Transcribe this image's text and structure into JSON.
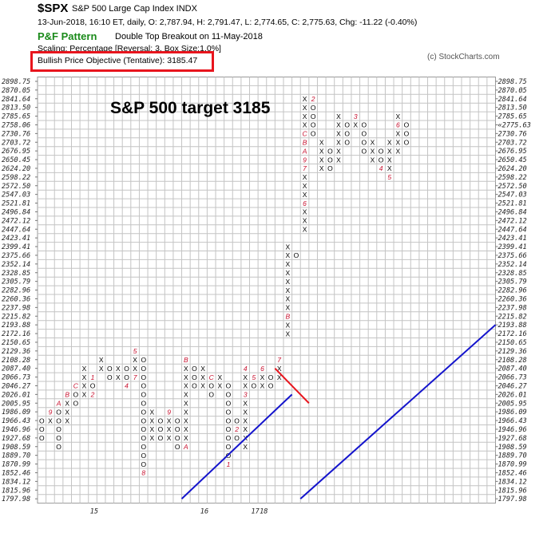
{
  "header": {
    "symbol": "$SPX",
    "name": "S&P 500 Large Cap Index  INDX",
    "ohlc": "13-Jun-2018, 16:10 ET, daily, O: 2,787.94, H: 2,791.47, L: 2,774.65, C: 2,775.63, Chg: -11.22 (-0.40%)",
    "pattern_label": "P&F Pattern",
    "pattern": "Double Top Breakout on 11-May-2018",
    "scaling": "Scaling: Percentage [Reversal: 3, Box Size:1.0%]",
    "copyright": "(c) StockCharts.com",
    "objective": "Bullish Price Objective (Tentative): 3185.47"
  },
  "colors": {
    "highlight": "#e8151d",
    "trendline": "#1414cc",
    "resistance": "#e8151d",
    "month": "#c8102e",
    "pattern": "#1a8a1a",
    "last_price": "#c8102e"
  },
  "chart_data": {
    "type": "point-and-figure",
    "annotation": "S&P 500 target 3185",
    "y_ticks": [
      "2898.75",
      "2870.05",
      "2841.64",
      "2813.50",
      "2785.65",
      "2758.06",
      "2730.76",
      "2703.72",
      "2676.95",
      "2650.45",
      "2624.20",
      "2598.22",
      "2572.50",
      "2547.03",
      "2521.81",
      "2496.84",
      "2472.12",
      "2447.64",
      "2423.41",
      "2399.41",
      "2375.66",
      "2352.14",
      "2328.85",
      "2305.79",
      "2282.96",
      "2260.36",
      "2237.98",
      "2215.82",
      "2193.88",
      "2172.16",
      "2150.65",
      "2129.36",
      "2108.28",
      "2087.40",
      "2066.73",
      "2046.27",
      "2026.01",
      "2005.95",
      "1986.09",
      "1966.43",
      "1946.96",
      "1927.68",
      "1908.59",
      "1889.70",
      "1870.99",
      "1852.46",
      "1834.12",
      "1815.96",
      "1797.98"
    ],
    "last_price_label": "2758.06",
    "last_price_right": "2775.63",
    "x_labels": [
      {
        "col": 6,
        "text": "15"
      },
      {
        "col": 19,
        "text": "16"
      },
      {
        "col": 25,
        "text": "17"
      },
      {
        "col": 26,
        "text": "18"
      }
    ],
    "columns": [
      {
        "t": "O",
        "top": "1966.43",
        "cells": "OOO"
      },
      {
        "t": "X",
        "top": "1986.09",
        "cells": "9X"
      },
      {
        "t": "O",
        "top": "2005.95",
        "cells": "AOOOOO"
      },
      {
        "t": "X",
        "top": "2026.01",
        "cells": "BXXX"
      },
      {
        "t": "O",
        "top": "2046.27",
        "cells": "COO"
      },
      {
        "t": "X",
        "top": "2087.40",
        "cells": "XXXX"
      },
      {
        "t": "O",
        "top": "2066.73",
        "cells": "1O2"
      },
      {
        "t": "X",
        "top": "2108.28",
        "cells": "XX"
      },
      {
        "t": "O",
        "top": "2087.40",
        "cells": "OO"
      },
      {
        "t": "X",
        "top": "2087.40",
        "cells": "XX"
      },
      {
        "t": "O",
        "top": "2087.40",
        "cells": "OO4"
      },
      {
        "t": "X",
        "top": "2129.36",
        "cells": "5XX7"
      },
      {
        "t": "O",
        "top": "2108.28",
        "cells": "OOOOOOOOOOOOO8"
      },
      {
        "t": "X",
        "top": "1986.09",
        "cells": "XXXX"
      },
      {
        "t": "O",
        "top": "1966.43",
        "cells": "OOO"
      },
      {
        "t": "X",
        "top": "1986.09",
        "cells": "9XXX"
      },
      {
        "t": "O",
        "top": "1966.43",
        "cells": "OOOO"
      },
      {
        "t": "X",
        "top": "2108.28",
        "cells": "BXXXXXXXXXA"
      },
      {
        "t": "O",
        "top": "2087.40",
        "cells": "OOO"
      },
      {
        "t": "X",
        "top": "2087.40",
        "cells": "XXX"
      },
      {
        "t": "O",
        "top": "2066.73",
        "cells": "COO"
      },
      {
        "t": "X",
        "top": "2066.73",
        "cells": "XX"
      },
      {
        "t": "O",
        "top": "2046.27",
        "cells": "OOOOOOOOO1"
      },
      {
        "t": "O",
        "top": "1966.43",
        "cells": "O2O"
      },
      {
        "t": "X",
        "top": "2087.40",
        "cells": "4XX3XXXXXX"
      },
      {
        "t": "O",
        "top": "2066.73",
        "cells": "5O"
      },
      {
        "t": "X",
        "top": "2087.40",
        "cells": "6XX"
      },
      {
        "t": "O",
        "top": "2066.73",
        "cells": "OO"
      },
      {
        "t": "X",
        "top": "2108.28",
        "cells": "7XX"
      },
      {
        "t": "X",
        "top": "2399.41",
        "cells": "XXXXXXXXBXX"
      },
      {
        "t": "O",
        "top": "2375.66",
        "cells": "O"
      },
      {
        "t": "X",
        "top": "2841.64",
        "cells": "XXXXCBA97XXX6XXX"
      },
      {
        "t": "O",
        "top": "2841.64",
        "cells": "2OOOO"
      },
      {
        "t": "X",
        "top": "2703.72",
        "cells": "XXXX"
      },
      {
        "t": "O",
        "top": "2676.95",
        "cells": "OOO"
      },
      {
        "t": "X",
        "top": "2785.65",
        "cells": "XXXXXX"
      },
      {
        "t": "O",
        "top": "2758.06",
        "cells": "OOO"
      },
      {
        "t": "X",
        "top": "2785.65",
        "cells": "3X"
      },
      {
        "t": "O",
        "top": "2758.06",
        "cells": "OOOO"
      },
      {
        "t": "X",
        "top": "2703.72",
        "cells": "XXX"
      },
      {
        "t": "O",
        "top": "2676.95",
        "cells": "OO4"
      },
      {
        "t": "X",
        "top": "2703.72",
        "cells": "XXXX5"
      },
      {
        "t": "X",
        "top": "2785.65",
        "cells": "X6XXX"
      },
      {
        "t": "O",
        "top": "2758.06",
        "cells": "OOO"
      }
    ],
    "lines": [
      {
        "kind": "trendline",
        "from": [
          17,
          "1797.98"
        ],
        "to": [
          30,
          "2026.01"
        ]
      },
      {
        "kind": "trendline",
        "from": [
          31,
          "1797.98"
        ],
        "to": [
          54,
          "2193.88"
        ]
      },
      {
        "kind": "resistance",
        "from": [
          28,
          "2087.40"
        ],
        "to": [
          32,
          "2005.95"
        ]
      }
    ]
  }
}
